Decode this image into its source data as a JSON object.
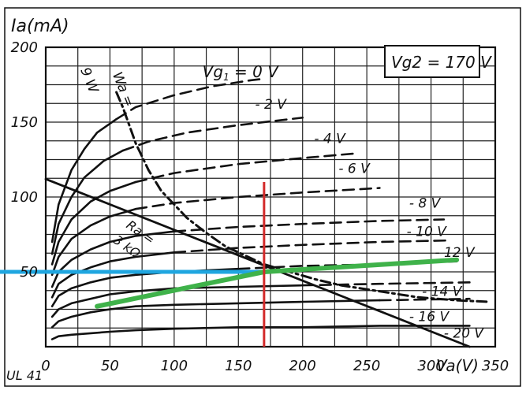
{
  "chart_data": {
    "type": "line",
    "title": "",
    "xlabel": "Va(V)",
    "ylabel": "Ia(mA)",
    "tube_label": "UL 41",
    "screen_voltage_label": "Vg2 = 170 V",
    "xlim": [
      0,
      350
    ],
    "ylim": [
      0,
      200
    ],
    "x_ticks": [
      0,
      50,
      100,
      150,
      200,
      250,
      300,
      350
    ],
    "y_ticks": [
      50,
      100,
      150,
      200
    ],
    "grid": true,
    "curves": [
      {
        "name": "Vg1 = 0 V",
        "label_parts": [
          "Vg",
          "1",
          " = 0 V"
        ],
        "label_at": [
          122,
          180
        ],
        "points": [
          [
            5,
            70
          ],
          [
            10,
            95
          ],
          [
            20,
            118
          ],
          [
            30,
            132
          ],
          [
            40,
            143
          ],
          [
            55,
            152
          ],
          [
            70,
            160
          ],
          [
            100,
            168
          ],
          [
            130,
            174
          ],
          [
            160,
            178
          ],
          [
            170,
            179
          ]
        ]
      },
      {
        "name": "- 2 V",
        "label_parts": [
          "- 2 V"
        ],
        "label_at": [
          163,
          159
        ],
        "points": [
          [
            5,
            62
          ],
          [
            10,
            82
          ],
          [
            20,
            100
          ],
          [
            30,
            113
          ],
          [
            45,
            124
          ],
          [
            60,
            131
          ],
          [
            80,
            137
          ],
          [
            110,
            143
          ],
          [
            150,
            148
          ],
          [
            200,
            153
          ]
        ]
      },
      {
        "name": "- 4 V",
        "label_parts": [
          "- 4 V"
        ],
        "label_at": [
          209,
          136
        ],
        "points": [
          [
            5,
            55
          ],
          [
            10,
            70
          ],
          [
            20,
            85
          ],
          [
            35,
            97
          ],
          [
            50,
            104
          ],
          [
            70,
            110
          ],
          [
            100,
            116
          ],
          [
            150,
            122
          ],
          [
            200,
            126
          ],
          [
            240,
            129
          ]
        ]
      },
      {
        "name": "- 6 V",
        "label_parts": [
          "- 6 V"
        ],
        "label_at": [
          228,
          116
        ],
        "points": [
          [
            5,
            48
          ],
          [
            10,
            60
          ],
          [
            20,
            72
          ],
          [
            35,
            81
          ],
          [
            50,
            87
          ],
          [
            70,
            92
          ],
          [
            100,
            96
          ],
          [
            150,
            100
          ],
          [
            200,
            103
          ],
          [
            260,
            106
          ]
        ]
      },
      {
        "name": "- 8 V",
        "label_parts": [
          "- 8 V"
        ],
        "label_at": [
          283,
          93
        ],
        "points": [
          [
            5,
            40
          ],
          [
            10,
            50
          ],
          [
            20,
            58
          ],
          [
            35,
            65
          ],
          [
            50,
            70
          ],
          [
            70,
            74
          ],
          [
            100,
            77
          ],
          [
            150,
            80
          ],
          [
            200,
            82
          ],
          [
            260,
            84
          ],
          [
            310,
            85
          ]
        ]
      },
      {
        "name": "- 10 V",
        "label_parts": [
          "- 10 V"
        ],
        "label_at": [
          281,
          74
        ],
        "points": [
          [
            5,
            33
          ],
          [
            10,
            42
          ],
          [
            20,
            48
          ],
          [
            35,
            53
          ],
          [
            50,
            57
          ],
          [
            70,
            60
          ],
          [
            100,
            63
          ],
          [
            150,
            66
          ],
          [
            200,
            68
          ],
          [
            260,
            70
          ],
          [
            315,
            71
          ]
        ]
      },
      {
        "name": "- 12 V",
        "label_parts": [
          "- 12 V"
        ],
        "label_at": [
          303,
          60
        ],
        "points": [
          [
            5,
            27
          ],
          [
            10,
            34
          ],
          [
            20,
            39
          ],
          [
            35,
            43
          ],
          [
            50,
            46
          ],
          [
            70,
            48
          ],
          [
            100,
            50
          ],
          [
            150,
            52
          ],
          [
            200,
            54
          ],
          [
            260,
            55
          ],
          [
            320,
            57
          ]
        ]
      },
      {
        "name": "- 14 V",
        "label_parts": [
          "- 14 V"
        ],
        "label_at": [
          293,
          34
        ],
        "points": [
          [
            5,
            20
          ],
          [
            10,
            25
          ],
          [
            20,
            29
          ],
          [
            35,
            32
          ],
          [
            50,
            35
          ],
          [
            70,
            37
          ],
          [
            100,
            39
          ],
          [
            150,
            40
          ],
          [
            200,
            41
          ],
          [
            260,
            42
          ],
          [
            330,
            43
          ]
        ]
      },
      {
        "name": "- 16 V",
        "label_parts": [
          "- 16 V"
        ],
        "label_at": [
          283,
          17
        ],
        "points": [
          [
            5,
            13
          ],
          [
            10,
            17
          ],
          [
            20,
            20
          ],
          [
            35,
            23
          ],
          [
            50,
            25
          ],
          [
            70,
            27
          ],
          [
            100,
            28
          ],
          [
            150,
            29
          ],
          [
            200,
            30
          ],
          [
            260,
            31
          ],
          [
            330,
            32
          ]
        ]
      },
      {
        "name": "- 20 V",
        "label_parts": [
          "- 20 V"
        ],
        "label_at": [
          310,
          6
        ],
        "points": [
          [
            5,
            5
          ],
          [
            10,
            7
          ],
          [
            20,
            8
          ],
          [
            35,
            9
          ],
          [
            50,
            10
          ],
          [
            70,
            11
          ],
          [
            100,
            12
          ],
          [
            150,
            13
          ],
          [
            200,
            13
          ],
          [
            260,
            14
          ],
          [
            330,
            14
          ]
        ]
      }
    ],
    "plate_dissipation_curve": {
      "name": "Wa = 9 W",
      "label": "Wa =",
      "label_value": "9 W",
      "points": [
        [
          55,
          170
        ],
        [
          60,
          160
        ],
        [
          65,
          148
        ],
        [
          70,
          136
        ],
        [
          80,
          118
        ],
        [
          90,
          104
        ],
        [
          100,
          95
        ],
        [
          110,
          86
        ],
        [
          125,
          76
        ],
        [
          140,
          67
        ],
        [
          155,
          61
        ],
        [
          170,
          55
        ],
        [
          190,
          50
        ],
        [
          210,
          45
        ],
        [
          230,
          41
        ],
        [
          260,
          37
        ],
        [
          290,
          33
        ],
        [
          320,
          31
        ],
        [
          345,
          30
        ]
      ]
    },
    "load_line": {
      "name": "Ra = 3 kΩ",
      "label": "Ra =",
      "label_value": "3 kΩ",
      "points": [
        [
          0,
          112
        ],
        [
          330,
          0
        ]
      ]
    },
    "markers": {
      "operating_va": 170,
      "operating_ia": 50,
      "vertical_line": {
        "x": 170,
        "y_from": 0,
        "y_to": 110,
        "color": "#d32a2a"
      },
      "horizontal_line": {
        "y": 50,
        "x_from": -30,
        "x_to": 170,
        "color": "#1fa6e0"
      },
      "tangent_line": {
        "points": [
          [
            40,
            27
          ],
          [
            170,
            50
          ],
          [
            320,
            58
          ]
        ],
        "color": "#3fb24a"
      }
    }
  }
}
